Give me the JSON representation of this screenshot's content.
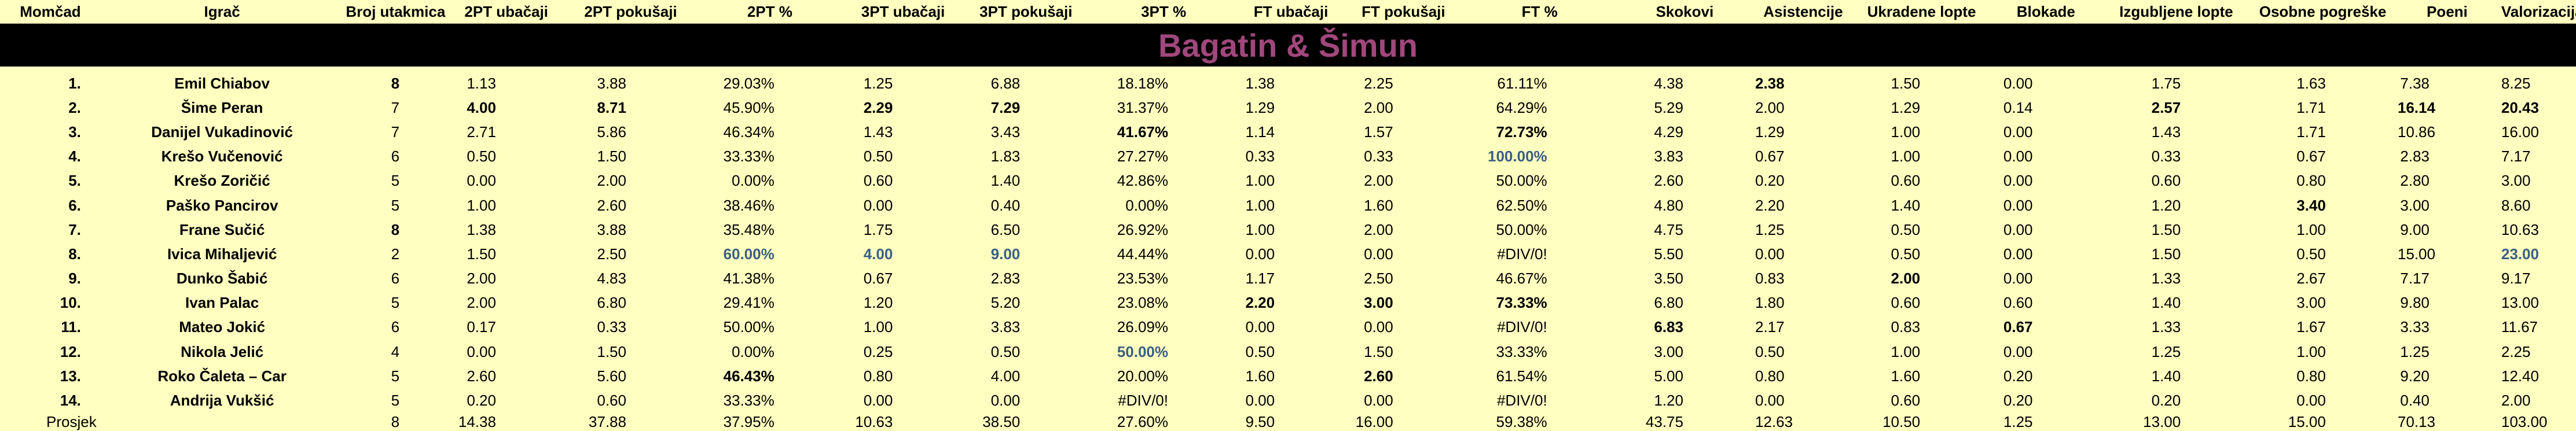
{
  "headers": [
    "Momčad",
    "Igrač",
    "Broj utakmica",
    "2PT ubačaji",
    "2PT pokušaji",
    "2PT %",
    "3PT ubačaji",
    "3PT pokušaji",
    "3PT %",
    "FT ubačaji",
    "FT pokušaji",
    "FT %",
    "Skokovi",
    "Asistencije",
    "Ukradene lopte",
    "Blokade",
    "Izgubljene lopte",
    "Osobne pogreške",
    "Poeni",
    "Valorizacija"
  ],
  "team_title": "Bagatin & Šimun",
  "rows": [
    {
      "rank": "1.",
      "name": "Emil Chiabov",
      "cells": [
        "8",
        "1.13",
        "3.88",
        "29.03%",
        "1.25",
        "6.88",
        "18.18%",
        "1.38",
        "2.25",
        "61.11%",
        "4.38",
        "2.38",
        "1.50",
        "0.00",
        "1.75",
        "1.63",
        "7.38",
        "8.25"
      ]
    },
    {
      "rank": "2.",
      "name": "Šime Peran",
      "cells": [
        "7",
        "4.00",
        "8.71",
        "45.90%",
        "2.29",
        "7.29",
        "31.37%",
        "1.29",
        "2.00",
        "64.29%",
        "5.29",
        "2.00",
        "1.29",
        "0.14",
        "2.57",
        "1.71",
        "16.14",
        "20.43"
      ]
    },
    {
      "rank": "3.",
      "name": "Danijel Vukadinović",
      "cells": [
        "7",
        "2.71",
        "5.86",
        "46.34%",
        "1.43",
        "3.43",
        "41.67%",
        "1.14",
        "1.57",
        "72.73%",
        "4.29",
        "1.29",
        "1.00",
        "0.00",
        "1.43",
        "1.71",
        "10.86",
        "16.00"
      ]
    },
    {
      "rank": "4.",
      "name": "Krešo Vučenović",
      "cells": [
        "6",
        "0.50",
        "1.50",
        "33.33%",
        "0.50",
        "1.83",
        "27.27%",
        "0.33",
        "0.33",
        "100.00%",
        "3.83",
        "0.67",
        "1.00",
        "0.00",
        "0.33",
        "0.67",
        "2.83",
        "7.17"
      ]
    },
    {
      "rank": "5.",
      "name": "Krešo Zoričić",
      "cells": [
        "5",
        "0.00",
        "2.00",
        "0.00%",
        "0.60",
        "1.40",
        "42.86%",
        "1.00",
        "2.00",
        "50.00%",
        "2.60",
        "0.20",
        "0.60",
        "0.00",
        "0.60",
        "0.80",
        "2.80",
        "3.00"
      ]
    },
    {
      "rank": "6.",
      "name": "Paško Pancirov",
      "cells": [
        "5",
        "1.00",
        "2.60",
        "38.46%",
        "0.00",
        "0.40",
        "0.00%",
        "1.00",
        "1.60",
        "62.50%",
        "4.80",
        "2.20",
        "1.40",
        "0.00",
        "1.20",
        "3.40",
        "3.00",
        "8.60"
      ]
    },
    {
      "rank": "7.",
      "name": "Frane Sučić",
      "cells": [
        "8",
        "1.38",
        "3.88",
        "35.48%",
        "1.75",
        "6.50",
        "26.92%",
        "1.00",
        "2.00",
        "50.00%",
        "4.75",
        "1.25",
        "0.50",
        "0.00",
        "1.50",
        "1.00",
        "9.00",
        "10.63"
      ]
    },
    {
      "rank": "8.",
      "name": "Ivica Mihaljević",
      "cells": [
        "2",
        "1.50",
        "2.50",
        "60.00%",
        "4.00",
        "9.00",
        "44.44%",
        "0.00",
        "0.00",
        "#DIV/0!",
        "5.50",
        "0.00",
        "0.50",
        "0.00",
        "1.50",
        "0.50",
        "15.00",
        "23.00"
      ]
    },
    {
      "rank": "9.",
      "name": "Dunko Šabić",
      "cells": [
        "6",
        "2.00",
        "4.83",
        "41.38%",
        "0.67",
        "2.83",
        "23.53%",
        "1.17",
        "2.50",
        "46.67%",
        "3.50",
        "0.83",
        "2.00",
        "0.00",
        "1.33",
        "2.67",
        "7.17",
        "9.17"
      ]
    },
    {
      "rank": "10.",
      "name": "Ivan Palac",
      "cells": [
        "5",
        "2.00",
        "6.80",
        "29.41%",
        "1.20",
        "5.20",
        "23.08%",
        "2.20",
        "3.00",
        "73.33%",
        "6.80",
        "1.80",
        "0.60",
        "0.60",
        "1.40",
        "3.00",
        "9.80",
        "13.00"
      ]
    },
    {
      "rank": "11.",
      "name": "Mateo Jokić",
      "cells": [
        "6",
        "0.17",
        "0.33",
        "50.00%",
        "1.00",
        "3.83",
        "26.09%",
        "0.00",
        "0.00",
        "#DIV/0!",
        "6.83",
        "2.17",
        "0.83",
        "0.67",
        "1.33",
        "1.67",
        "3.33",
        "11.67"
      ]
    },
    {
      "rank": "12.",
      "name": "Nikola Jelić",
      "cells": [
        "4",
        "0.00",
        "1.50",
        "0.00%",
        "0.25",
        "0.50",
        "50.00%",
        "0.50",
        "1.50",
        "33.33%",
        "3.00",
        "0.50",
        "1.00",
        "0.00",
        "1.25",
        "1.00",
        "1.25",
        "2.25"
      ]
    },
    {
      "rank": "13.",
      "name": "Roko Čaleta – Car",
      "cells": [
        "5",
        "2.60",
        "5.60",
        "46.43%",
        "0.80",
        "4.00",
        "20.00%",
        "1.60",
        "2.60",
        "61.54%",
        "5.00",
        "0.80",
        "1.60",
        "0.20",
        "1.40",
        "0.80",
        "9.20",
        "12.40"
      ]
    },
    {
      "rank": "14.",
      "name": "Andrija Vukšić",
      "cells": [
        "5",
        "0.20",
        "0.60",
        "33.33%",
        "0.00",
        "0.00",
        "#DIV/0!",
        "0.00",
        "0.00",
        "#DIV/0!",
        "1.20",
        "0.00",
        "0.60",
        "0.20",
        "0.20",
        "0.00",
        "0.40",
        "2.00"
      ]
    }
  ],
  "average": {
    "label": "Prosjek",
    "cells": [
      "8",
      "14.38",
      "37.88",
      "37.95%",
      "10.63",
      "38.50",
      "27.60%",
      "9.50",
      "16.00",
      "59.38%",
      "43.75",
      "12.63",
      "10.50",
      "1.25",
      "13.00",
      "15.00",
      "70.13",
      "103.00"
    ]
  },
  "colors": {
    "background": "#ffffc0",
    "banner": "#000000",
    "banner_text": "#a0477c",
    "highlight_blue": "#3a5f84"
  }
}
